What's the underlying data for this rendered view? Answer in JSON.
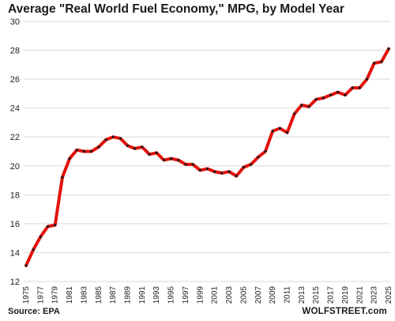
{
  "chart_data": {
    "type": "line",
    "title": "Average \"Real World Fuel Economy,\" MPG, by Model Year",
    "xlabel": "",
    "ylabel": "",
    "source": "Source: EPA",
    "brand": "WOLFSTREET.com",
    "ylim": [
      12,
      30
    ],
    "yticks": [
      12,
      14,
      16,
      18,
      20,
      22,
      24,
      26,
      28,
      30
    ],
    "xlim": [
      1975,
      2025
    ],
    "xticks": [
      1975,
      1977,
      1979,
      1981,
      1983,
      1985,
      1987,
      1989,
      1991,
      1993,
      1995,
      1997,
      1999,
      2001,
      2003,
      2005,
      2007,
      2009,
      2011,
      2013,
      2015,
      2017,
      2019,
      2021,
      2023,
      2025
    ],
    "grid": "horizontal",
    "legend": "none",
    "colors": {
      "line": "#e3120b",
      "markers": "#1a1a1a",
      "grid": "#d9d9d9"
    },
    "series": [
      {
        "x": [
          1975,
          1976,
          1977,
          1978,
          1979,
          1980,
          1981,
          1982,
          1983,
          1984,
          1985,
          1986,
          1987,
          1988,
          1989,
          1990,
          1991,
          1992,
          1993,
          1994,
          1995,
          1996,
          1997,
          1998,
          1999,
          2000,
          2001,
          2002,
          2003,
          2004,
          2005,
          2006,
          2007,
          2008,
          2009,
          2010,
          2011,
          2012,
          2013,
          2014,
          2015,
          2016,
          2017,
          2018,
          2019,
          2020,
          2021,
          2022,
          2023,
          2024,
          2025
        ],
        "values": [
          13.1,
          14.2,
          15.1,
          15.8,
          15.9,
          19.2,
          20.5,
          21.1,
          21.0,
          21.0,
          21.3,
          21.8,
          22.0,
          21.9,
          21.4,
          21.2,
          21.3,
          20.8,
          20.9,
          20.4,
          20.5,
          20.4,
          20.1,
          20.1,
          19.7,
          19.8,
          19.6,
          19.5,
          19.6,
          19.3,
          19.9,
          20.1,
          20.6,
          21.0,
          22.4,
          22.6,
          22.3,
          23.6,
          24.2,
          24.1,
          24.6,
          24.7,
          24.9,
          25.1,
          24.9,
          25.4,
          25.4,
          26.0,
          27.1,
          27.2,
          28.1
        ]
      }
    ]
  }
}
